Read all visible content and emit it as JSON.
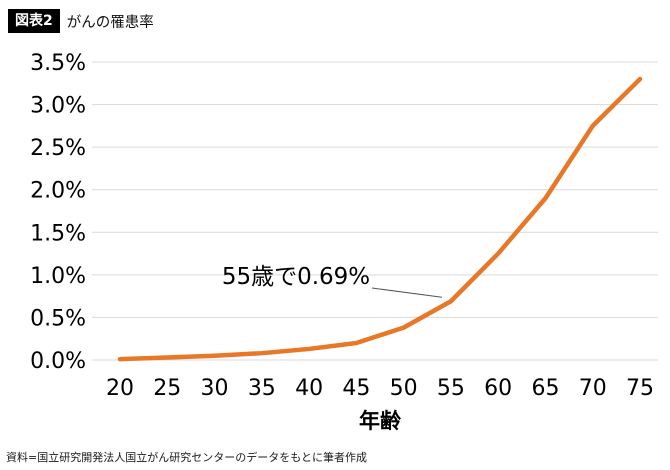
{
  "header": {
    "badge": "図表2",
    "title": "がんの罹患率"
  },
  "footer": {
    "source": "資料=国立研究開発法人国立がん研究センターのデータをもとに筆者作成"
  },
  "chart_data": {
    "type": "line",
    "title": "がんの罹患率",
    "xlabel": "年齢",
    "ylabel": "",
    "x": [
      20,
      25,
      30,
      35,
      40,
      45,
      50,
      55,
      60,
      65,
      70,
      75
    ],
    "values": [
      0.01,
      0.03,
      0.05,
      0.08,
      0.13,
      0.2,
      0.38,
      0.69,
      1.25,
      1.9,
      2.75,
      3.3
    ],
    "ylim": [
      0,
      3.5
    ],
    "ytick_step": 0.5,
    "ytick_labels": [
      "0.0%",
      "0.5%",
      "1.0%",
      "1.5%",
      "2.0%",
      "2.5%",
      "3.0%",
      "3.5%"
    ],
    "xtick_labels": [
      "20",
      "25",
      "30",
      "35",
      "40",
      "45",
      "50",
      "55",
      "60",
      "65",
      "70",
      "75"
    ],
    "grid": true,
    "legend": "none",
    "line_color": "#e87728",
    "grid_color": "#d9d9d9",
    "annotation": {
      "text": "55歳で0.69%",
      "x": 55,
      "y": 0.69
    }
  }
}
